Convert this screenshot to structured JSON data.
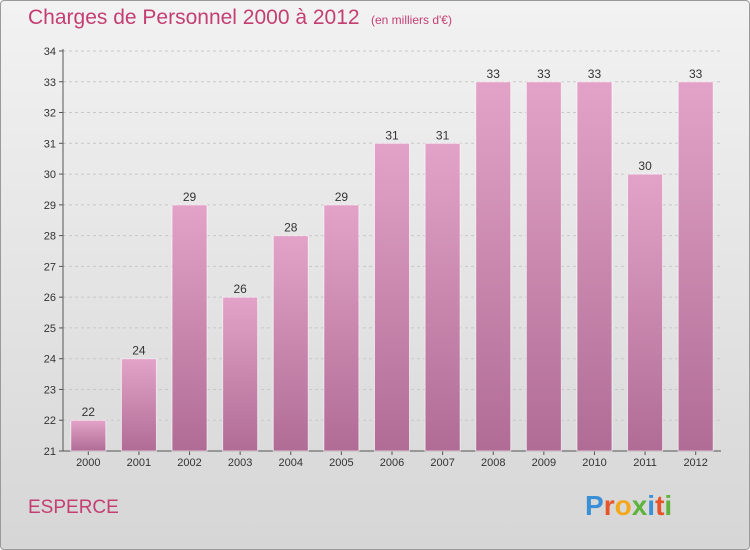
{
  "header": {
    "title": "Charges de Personnel 2000 à 2012",
    "subtitle": "(en milliers d'€)"
  },
  "footer": {
    "commune": "ESPERCE",
    "logo_text": "Proxiti",
    "logo_colors": [
      "#3a8fd6",
      "#e8542a",
      "#f2a81d",
      "#5db33b",
      "#3a8fd6",
      "#e8542a",
      "#5db33b"
    ]
  },
  "chart_data": {
    "type": "bar",
    "categories": [
      "2000",
      "2001",
      "2002",
      "2003",
      "2004",
      "2005",
      "2006",
      "2007",
      "2008",
      "2009",
      "2010",
      "2011",
      "2012"
    ],
    "values": [
      22,
      24,
      29,
      26,
      28,
      29,
      31,
      31,
      33,
      33,
      33,
      30,
      33
    ],
    "data_labels": [
      "22",
      "24",
      "29",
      "26",
      "28",
      "29",
      "31",
      "31",
      "33",
      "33",
      "33",
      "30",
      "33"
    ],
    "title": "Charges de Personnel 2000 à 2012",
    "subtitle": "(en milliers d'€)",
    "xlabel": "",
    "ylabel": "",
    "ylim": [
      21,
      34
    ],
    "yticks": [
      21,
      22,
      23,
      24,
      25,
      26,
      27,
      28,
      29,
      30,
      31,
      32,
      33,
      34
    ],
    "grid": true,
    "legend": "none",
    "bar_color_top": "#e3a3c8",
    "bar_color_bottom": "#b06c95"
  }
}
